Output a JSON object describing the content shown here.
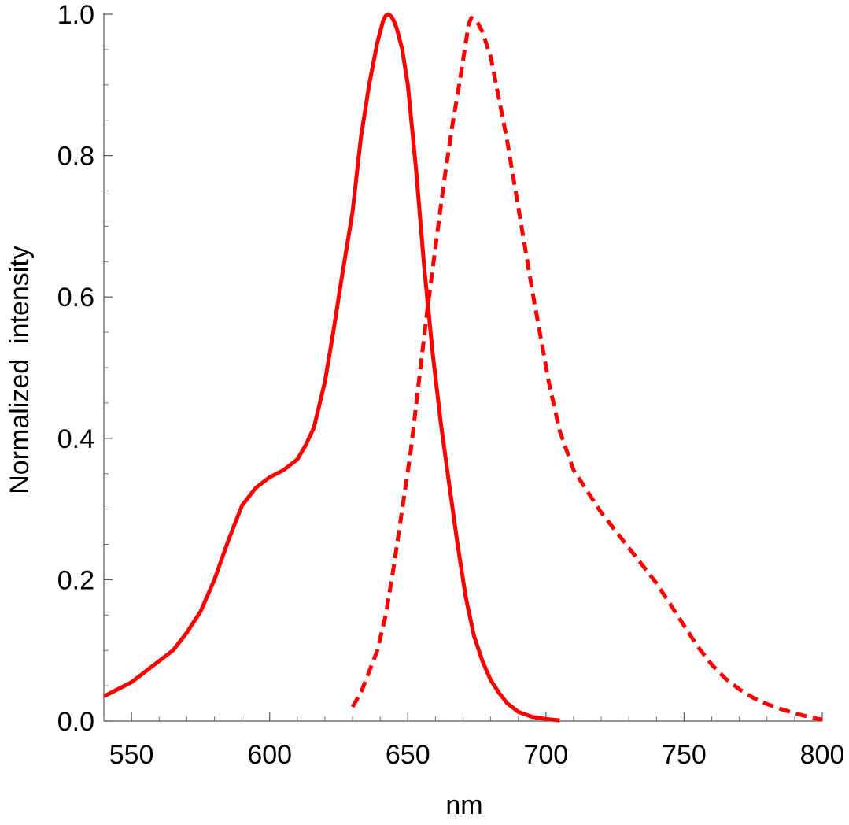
{
  "chart_data": {
    "type": "line",
    "title": "",
    "xlabel": "nm",
    "ylabel": "Normalized  intensity",
    "xlim": [
      540,
      800
    ],
    "ylim": [
      0,
      1
    ],
    "x_ticks": [
      550,
      600,
      650,
      700,
      750,
      800
    ],
    "x_tick_labels": [
      "550",
      "600",
      "650",
      "700",
      "750",
      "800"
    ],
    "y_ticks": [
      0.0,
      0.2,
      0.4,
      0.6,
      0.8,
      1.0
    ],
    "y_tick_labels": [
      "0.0",
      "0.2",
      "0.4",
      "0.6",
      "0.8",
      "1.0"
    ],
    "grid": false,
    "legend": "none",
    "series": [
      {
        "style": "solid",
        "color": "#ff0000",
        "x": [
          540,
          545,
          550,
          555,
          560,
          565,
          570,
          575,
          580,
          585,
          590,
          595,
          600,
          605,
          610,
          613,
          616,
          620,
          623,
          626,
          630,
          633,
          636,
          639,
          641,
          642,
          643,
          644,
          645,
          646,
          648,
          650,
          653,
          656,
          659,
          662,
          665,
          668,
          671,
          674,
          677,
          680,
          683,
          686,
          690,
          695,
          700,
          705
        ],
        "y": [
          0.035,
          0.045,
          0.055,
          0.07,
          0.085,
          0.1,
          0.125,
          0.155,
          0.2,
          0.255,
          0.305,
          0.33,
          0.345,
          0.355,
          0.37,
          0.39,
          0.415,
          0.48,
          0.55,
          0.625,
          0.72,
          0.825,
          0.9,
          0.96,
          0.99,
          0.998,
          1.0,
          0.997,
          0.99,
          0.98,
          0.95,
          0.9,
          0.78,
          0.64,
          0.52,
          0.42,
          0.335,
          0.25,
          0.175,
          0.12,
          0.085,
          0.058,
          0.04,
          0.025,
          0.013,
          0.006,
          0.003,
          0.001
        ]
      },
      {
        "style": "dashed",
        "color": "#ff0000",
        "x": [
          630,
          633,
          636,
          639,
          642,
          645,
          648,
          651,
          654,
          657,
          660,
          663,
          666,
          669,
          671,
          672,
          673,
          675,
          677,
          680,
          683,
          686,
          689,
          692,
          695,
          698,
          701,
          705,
          710,
          715,
          720,
          725,
          730,
          735,
          740,
          745,
          750,
          755,
          760,
          765,
          770,
          775,
          780,
          785,
          790,
          795,
          800
        ],
        "y": [
          0.02,
          0.04,
          0.07,
          0.1,
          0.15,
          0.22,
          0.3,
          0.38,
          0.48,
          0.58,
          0.67,
          0.76,
          0.84,
          0.91,
          0.96,
          0.985,
          0.995,
          0.99,
          0.975,
          0.94,
          0.88,
          0.82,
          0.75,
          0.68,
          0.61,
          0.545,
          0.48,
          0.41,
          0.355,
          0.325,
          0.295,
          0.27,
          0.245,
          0.22,
          0.195,
          0.165,
          0.135,
          0.105,
          0.08,
          0.06,
          0.045,
          0.033,
          0.024,
          0.017,
          0.011,
          0.006,
          0.002
        ]
      }
    ]
  }
}
